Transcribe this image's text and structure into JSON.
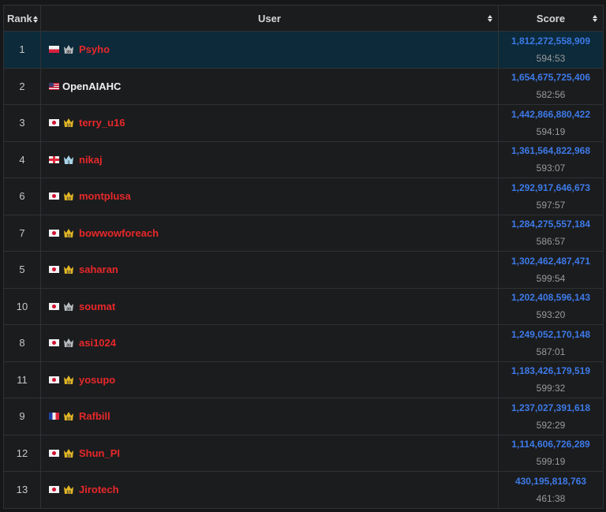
{
  "header": {
    "rank": "Rank",
    "user": "User",
    "score": "Score"
  },
  "colors": {
    "gold_crown": "#e3b724",
    "silver_crown": "#b8bcc0",
    "blue_crown": "#a8d4e8",
    "name_red": "#e8282a",
    "score_blue": "#3d7ae8",
    "highlight": "#0c2a3a"
  },
  "rows": [
    {
      "rank": "1",
      "flag": "pl",
      "crown": "silver",
      "crown_num": "30",
      "name": "Psyho",
      "name_color": "red",
      "score": "1,812,272,558,909",
      "time": "594:53",
      "highlight": true
    },
    {
      "rank": "2",
      "flag": "us",
      "crown": "",
      "crown_num": "",
      "name": "OpenAIAHC",
      "name_color": "white",
      "score": "1,654,675,725,406",
      "time": "582:56"
    },
    {
      "rank": "3",
      "flag": "jp",
      "crown": "gold",
      "crown_num": "10",
      "name": "terry_u16",
      "name_color": "red",
      "score": "1,442,866,880,422",
      "time": "594:19"
    },
    {
      "rank": "4",
      "flag": "ge",
      "crown": "blue",
      "crown_num": "1",
      "name": "nikaj",
      "name_color": "red",
      "score": "1,361,564,822,968",
      "time": "593:07"
    },
    {
      "rank": "6",
      "flag": "jp",
      "crown": "gold",
      "crown_num": "10",
      "name": "montplusa",
      "name_color": "red",
      "score": "1,292,917,646,673",
      "time": "597:57"
    },
    {
      "rank": "7",
      "flag": "jp",
      "crown": "gold",
      "crown_num": "10",
      "name": "bowwowforeach",
      "name_color": "red",
      "score": "1,284,275,557,184",
      "time": "586:57"
    },
    {
      "rank": "5",
      "flag": "jp",
      "crown": "gold",
      "crown_num": "10",
      "name": "saharan",
      "name_color": "red",
      "score": "1,302,462,487,471",
      "time": "599:54"
    },
    {
      "rank": "10",
      "flag": "jp",
      "crown": "silver",
      "crown_num": "30",
      "name": "soumat",
      "name_color": "red",
      "score": "1,202,408,596,143",
      "time": "593:20"
    },
    {
      "rank": "8",
      "flag": "jp",
      "crown": "silver",
      "crown_num": "30",
      "name": "asi1024",
      "name_color": "red",
      "score": "1,249,052,170,148",
      "time": "587:01"
    },
    {
      "rank": "11",
      "flag": "jp",
      "crown": "gold",
      "crown_num": "10",
      "name": "yosupo",
      "name_color": "red",
      "score": "1,183,426,179,519",
      "time": "599:32"
    },
    {
      "rank": "9",
      "flag": "fr",
      "crown": "gold",
      "crown_num": "10",
      "name": "Rafbill",
      "name_color": "red",
      "score": "1,237,027,391,618",
      "time": "592:29"
    },
    {
      "rank": "12",
      "flag": "jp",
      "crown": "gold",
      "crown_num": "10",
      "name": "Shun_PI",
      "name_color": "red",
      "score": "1,114,606,726,289",
      "time": "599:19"
    },
    {
      "rank": "13",
      "flag": "jp",
      "crown": "gold",
      "crown_num": "10",
      "name": "Jirotech",
      "name_color": "red",
      "score": "430,195,818,763",
      "time": "461:38"
    }
  ]
}
